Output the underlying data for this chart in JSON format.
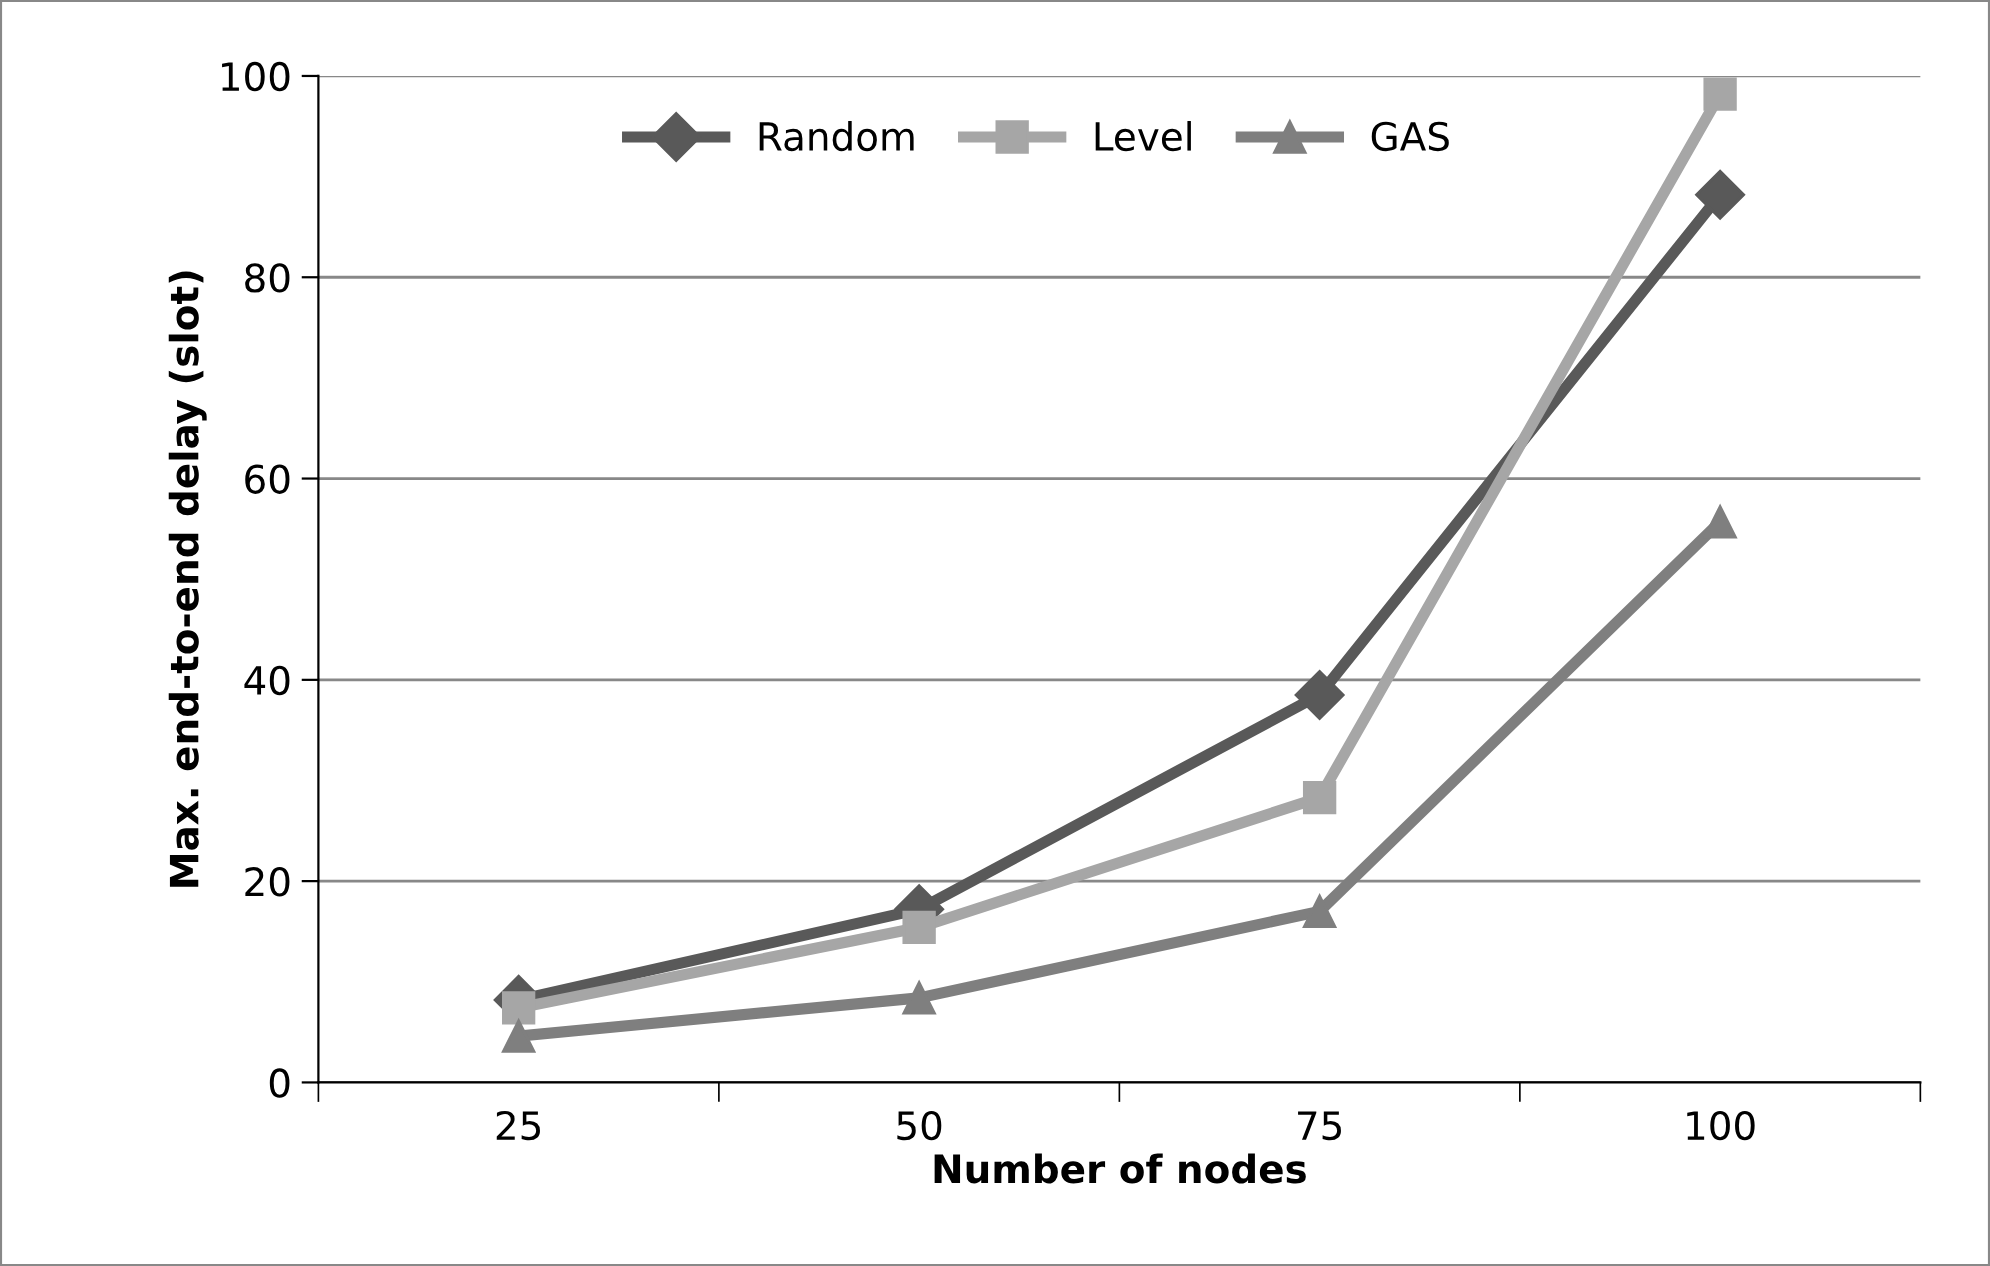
{
  "chart_data": {
    "type": "line",
    "xlabel": "Number of nodes",
    "ylabel": "Max. end-to-end delay (slot)",
    "categories": [
      "25",
      "50",
      "75",
      "100"
    ],
    "series": [
      {
        "name": "Random",
        "color": "#595959",
        "values": [
          8.2,
          17.2,
          38.5,
          88.2
        ],
        "marker": "diamond"
      },
      {
        "name": "Level",
        "color": "#a6a6a6",
        "values": [
          7.4,
          15.4,
          28.3,
          98.2
        ],
        "marker": "square"
      },
      {
        "name": "GAS",
        "color": "#7f7f7f",
        "values": [
          4.6,
          8.4,
          17,
          55.7
        ],
        "marker": "triangle"
      }
    ],
    "ylim": [
      0,
      100
    ],
    "yticks": [
      0,
      20,
      40,
      60,
      80,
      100
    ],
    "grid": "y",
    "legend": "top",
    "line_style": "solid"
  }
}
